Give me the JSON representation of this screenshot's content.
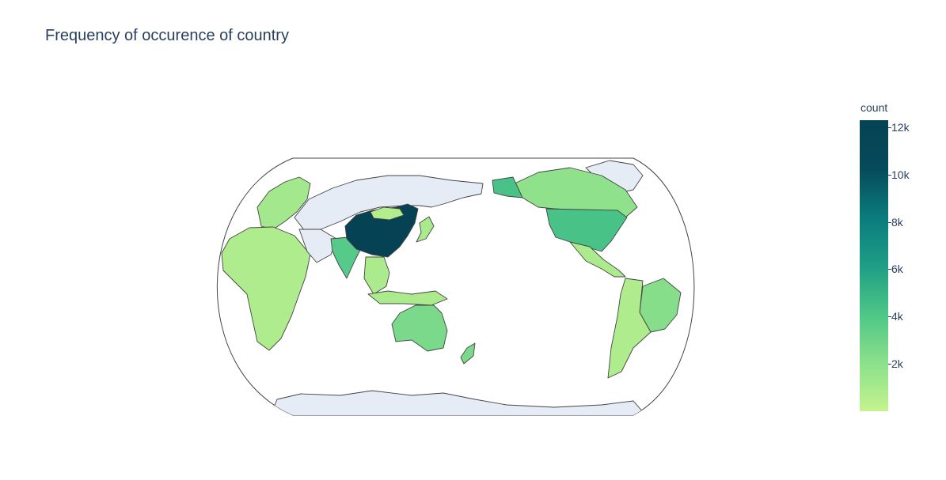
{
  "title": "Frequency of occurence of country",
  "colorbar": {
    "title": "count",
    "ticks": [
      "12k",
      "10k",
      "8k",
      "6k",
      "4k",
      "2k"
    ],
    "tick_values": [
      12000,
      10000,
      8000,
      6000,
      4000,
      2000
    ],
    "range": [
      0,
      12300
    ],
    "colorscale": [
      "#c5f38f",
      "#8be08b",
      "#4dc687",
      "#1e9e86",
      "#0a7b7d",
      "#064a5c",
      "#054354"
    ]
  },
  "colors": {
    "land_nodata": "#e5ecf6",
    "ocean": "#ffffff",
    "border": "#444444"
  },
  "map_data": {
    "projection": "natural earth",
    "center_longitude": 150,
    "regions": [
      {
        "name": "China",
        "value": 12200
      },
      {
        "name": "United States",
        "value": 4300
      },
      {
        "name": "India",
        "value": 3800
      },
      {
        "name": "Australia",
        "value": 2600
      },
      {
        "name": "Canada",
        "value": 1900
      },
      {
        "name": "Brazil",
        "value": 2200
      },
      {
        "name": "Africa",
        "value": 800
      },
      {
        "name": "Europe",
        "value": 1200
      },
      {
        "name": "Mexico",
        "value": 900
      },
      {
        "name": "Argentina",
        "value": 800
      },
      {
        "name": "Japan",
        "value": 1000
      },
      {
        "name": "Mongolia",
        "value": 600
      },
      {
        "name": "Southeast Asia",
        "value": 900
      },
      {
        "name": "Russia",
        "value": null
      },
      {
        "name": "Greenland",
        "value": null
      },
      {
        "name": "Antarctica",
        "value": null
      }
    ]
  }
}
